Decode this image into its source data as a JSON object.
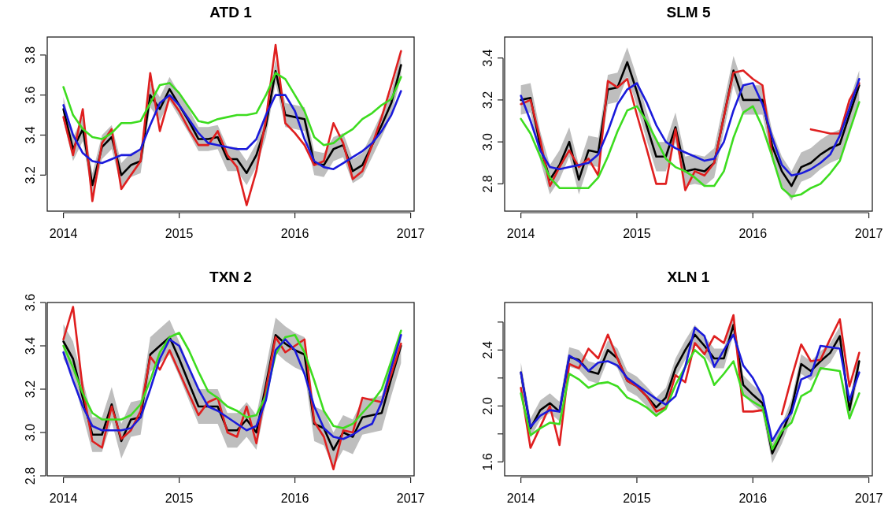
{
  "chart_data": [
    {
      "type": "line",
      "title": "ATD 1",
      "x": [
        2014,
        2014.083,
        2014.167,
        2014.25,
        2014.333,
        2014.417,
        2014.5,
        2014.583,
        2014.667,
        2014.75,
        2014.833,
        2014.917,
        2015,
        2015.083,
        2015.167,
        2015.25,
        2015.333,
        2015.417,
        2015.5,
        2015.583,
        2015.667,
        2015.75,
        2015.833,
        2015.917,
        2016,
        2016.083,
        2016.167,
        2016.25,
        2016.333,
        2016.417,
        2016.5,
        2016.583,
        2016.667,
        2016.75,
        2016.833,
        2016.917
      ],
      "xlim": [
        2013.86,
        2017.03
      ],
      "xticks": [
        2014,
        2015,
        2016,
        2017
      ],
      "ylim": [
        3.02,
        3.89
      ],
      "yticks": [
        3.2,
        3.4,
        3.6,
        3.8
      ],
      "series": [
        {
          "color": "#000000",
          "values": [
            3.53,
            3.33,
            3.43,
            3.15,
            3.34,
            3.39,
            3.2,
            3.25,
            3.27,
            3.6,
            3.53,
            3.63,
            3.55,
            3.47,
            3.38,
            3.38,
            3.39,
            3.28,
            3.28,
            3.21,
            3.3,
            3.45,
            3.72,
            3.5,
            3.49,
            3.48,
            3.26,
            3.25,
            3.33,
            3.35,
            3.22,
            3.25,
            3.35,
            3.45,
            3.56,
            3.75
          ],
          "lower": [
            3.47,
            3.27,
            3.37,
            3.09,
            3.28,
            3.33,
            3.14,
            3.19,
            3.21,
            3.54,
            3.47,
            3.57,
            3.49,
            3.41,
            3.32,
            3.32,
            3.33,
            3.22,
            3.22,
            3.15,
            3.24,
            3.39,
            3.66,
            3.44,
            3.43,
            3.42,
            3.2,
            3.19,
            3.27,
            3.29,
            3.16,
            3.19,
            3.29,
            3.39,
            3.5,
            3.69
          ],
          "upper": [
            3.59,
            3.39,
            3.49,
            3.21,
            3.4,
            3.45,
            3.26,
            3.31,
            3.33,
            3.66,
            3.59,
            3.69,
            3.61,
            3.53,
            3.44,
            3.44,
            3.45,
            3.34,
            3.34,
            3.27,
            3.36,
            3.51,
            3.78,
            3.56,
            3.55,
            3.54,
            3.32,
            3.31,
            3.39,
            3.41,
            3.28,
            3.31,
            3.41,
            3.51,
            3.62,
            3.81
          ]
        },
        {
          "color": "#df1f1f",
          "values": [
            3.49,
            3.3,
            3.53,
            3.07,
            3.36,
            3.43,
            3.13,
            3.2,
            3.27,
            3.71,
            3.42,
            3.59,
            3.52,
            3.43,
            3.35,
            3.35,
            3.42,
            3.3,
            3.24,
            3.05,
            3.22,
            3.48,
            3.85,
            3.46,
            3.41,
            3.35,
            3.25,
            3.27,
            3.46,
            3.36,
            3.18,
            3.22,
            3.35,
            3.49,
            3.65,
            3.82
          ]
        },
        {
          "color": "#3ddc1f",
          "values": [
            3.64,
            3.5,
            3.43,
            3.39,
            3.38,
            3.41,
            3.46,
            3.46,
            3.47,
            3.56,
            3.65,
            3.66,
            3.61,
            3.54,
            3.47,
            3.46,
            3.48,
            3.49,
            3.5,
            3.5,
            3.51,
            3.6,
            3.71,
            3.68,
            3.6,
            3.52,
            3.39,
            3.35,
            3.36,
            3.4,
            3.43,
            3.48,
            3.51,
            3.55,
            3.58,
            3.69
          ]
        },
        {
          "color": "#1a1adb",
          "values": [
            3.55,
            3.4,
            3.31,
            3.27,
            3.26,
            3.28,
            3.3,
            3.3,
            3.33,
            3.45,
            3.56,
            3.6,
            3.55,
            3.48,
            3.41,
            3.36,
            3.35,
            3.34,
            3.33,
            3.33,
            3.38,
            3.5,
            3.6,
            3.6,
            3.52,
            3.38,
            3.27,
            3.24,
            3.23,
            3.26,
            3.29,
            3.32,
            3.36,
            3.42,
            3.5,
            3.62
          ]
        }
      ]
    },
    {
      "type": "line",
      "title": "SLM 5",
      "x": [
        2014,
        2014.083,
        2014.167,
        2014.25,
        2014.333,
        2014.417,
        2014.5,
        2014.583,
        2014.667,
        2014.75,
        2014.833,
        2014.917,
        2015,
        2015.083,
        2015.167,
        2015.25,
        2015.333,
        2015.417,
        2015.5,
        2015.583,
        2015.667,
        2015.75,
        2015.833,
        2015.917,
        2016,
        2016.083,
        2016.167,
        2016.25,
        2016.333,
        2016.417,
        2016.5,
        2016.583,
        2016.667,
        2016.75,
        2016.833,
        2016.917
      ],
      "xlim": [
        2013.86,
        2017.03
      ],
      "xticks": [
        2014,
        2015,
        2016,
        2017
      ],
      "ylim": [
        2.67,
        3.5
      ],
      "yticks": [
        2.8,
        {
          "value": 3,
          "label": "3.0"
        },
        3.2,
        3.4
      ],
      "series": [
        {
          "color": "#000000",
          "values": [
            3.2,
            3.21,
            2.98,
            2.82,
            2.89,
            3.0,
            2.82,
            2.96,
            2.95,
            3.25,
            3.26,
            3.38,
            3.24,
            3.08,
            2.93,
            2.93,
            3.07,
            2.86,
            2.87,
            2.86,
            2.9,
            3.12,
            3.34,
            3.2,
            3.2,
            3.2,
            2.98,
            2.86,
            2.79,
            2.88,
            2.9,
            2.94,
            2.97,
            2.99,
            3.13,
            3.27
          ],
          "lower": [
            3.13,
            3.14,
            2.91,
            2.75,
            2.82,
            2.93,
            2.75,
            2.89,
            2.88,
            3.18,
            3.19,
            3.31,
            3.17,
            3.01,
            2.86,
            2.86,
            3.0,
            2.79,
            2.8,
            2.79,
            2.83,
            3.05,
            3.27,
            3.13,
            3.13,
            3.13,
            2.91,
            2.79,
            2.72,
            2.81,
            2.83,
            2.87,
            2.9,
            2.92,
            3.06,
            3.2
          ],
          "upper": [
            3.27,
            3.28,
            3.05,
            2.89,
            2.96,
            3.07,
            2.89,
            3.03,
            3.02,
            3.32,
            3.33,
            3.45,
            3.31,
            3.15,
            3.0,
            3.0,
            3.14,
            2.93,
            2.94,
            2.93,
            2.97,
            3.19,
            3.41,
            3.27,
            3.27,
            3.27,
            3.05,
            2.93,
            2.86,
            2.95,
            2.97,
            3.01,
            3.04,
            3.06,
            3.2,
            3.34
          ]
        },
        {
          "color": "#df1f1f",
          "values": [
            3.18,
            3.2,
            3.01,
            2.79,
            2.88,
            2.96,
            2.88,
            2.92,
            2.84,
            3.29,
            3.26,
            3.3,
            3.13,
            2.97,
            2.8,
            2.8,
            3.06,
            2.77,
            2.86,
            2.84,
            2.9,
            3.12,
            3.33,
            3.34,
            3.3,
            3.27,
            2.93,
            null,
            null,
            null,
            3.06,
            3.05,
            3.04,
            3.04,
            3.2,
            3.28
          ]
        },
        {
          "color": "#3ddc1f",
          "values": [
            3.11,
            3.04,
            2.93,
            2.83,
            2.78,
            2.78,
            2.78,
            2.78,
            2.83,
            2.93,
            3.05,
            3.15,
            3.17,
            3.1,
            3.01,
            2.92,
            2.88,
            2.86,
            2.83,
            2.79,
            2.79,
            2.86,
            3.02,
            3.14,
            3.17,
            3.07,
            2.93,
            2.78,
            2.74,
            2.75,
            2.78,
            2.8,
            2.85,
            2.91,
            3.05,
            3.19
          ]
        },
        {
          "color": "#1a1adb",
          "values": [
            3.22,
            3.1,
            2.96,
            2.88,
            2.87,
            2.88,
            2.89,
            2.9,
            2.94,
            3.05,
            3.18,
            3.25,
            3.28,
            3.19,
            3.08,
            3.0,
            2.97,
            2.95,
            2.93,
            2.91,
            2.92,
            3.0,
            3.15,
            3.27,
            3.28,
            3.18,
            3.02,
            2.89,
            2.84,
            2.85,
            2.87,
            2.9,
            2.94,
            3.03,
            3.16,
            3.3
          ]
        }
      ]
    },
    {
      "type": "line",
      "title": "TXN 2",
      "x": [
        2014,
        2014.083,
        2014.167,
        2014.25,
        2014.333,
        2014.417,
        2014.5,
        2014.583,
        2014.667,
        2014.75,
        2014.833,
        2014.917,
        2015,
        2015.083,
        2015.167,
        2015.25,
        2015.333,
        2015.417,
        2015.5,
        2015.583,
        2015.667,
        2015.75,
        2015.833,
        2015.917,
        2016,
        2016.083,
        2016.167,
        2016.25,
        2016.333,
        2016.417,
        2016.5,
        2016.583,
        2016.667,
        2016.75,
        2016.833,
        2016.917
      ],
      "xlim": [
        2013.86,
        2017.03
      ],
      "xticks": [
        2014,
        2015,
        2016,
        2017
      ],
      "ylim": [
        2.8,
        3.6
      ],
      "yticks": [
        2.8,
        {
          "value": 3,
          "label": "3.0"
        },
        3.2,
        3.4,
        3.6
      ],
      "series": [
        {
          "color": "#000000",
          "values": [
            3.42,
            3.34,
            3.16,
            2.99,
            2.99,
            3.13,
            2.96,
            3.06,
            3.07,
            3.36,
            3.4,
            3.44,
            3.34,
            3.23,
            3.12,
            3.12,
            3.12,
            3.01,
            3.01,
            3.06,
            3.0,
            3.22,
            3.45,
            3.41,
            3.38,
            3.36,
            3.04,
            3.02,
            2.92,
            3.0,
            2.98,
            3.07,
            3.08,
            3.09,
            3.25,
            3.4
          ],
          "lower": [
            3.34,
            3.26,
            3.08,
            2.91,
            2.91,
            3.05,
            2.88,
            2.98,
            2.99,
            3.28,
            3.32,
            3.36,
            3.26,
            3.15,
            3.04,
            3.04,
            3.04,
            2.93,
            2.93,
            2.98,
            2.92,
            3.14,
            3.37,
            3.33,
            3.3,
            3.28,
            2.96,
            2.94,
            2.84,
            2.92,
            2.9,
            2.99,
            3.0,
            3.01,
            3.17,
            3.32
          ],
          "upper": [
            3.5,
            3.42,
            3.24,
            3.07,
            3.07,
            3.21,
            3.04,
            3.14,
            3.15,
            3.44,
            3.48,
            3.52,
            3.42,
            3.31,
            3.2,
            3.2,
            3.2,
            3.09,
            3.09,
            3.14,
            3.08,
            3.3,
            3.53,
            3.49,
            3.46,
            3.44,
            3.12,
            3.1,
            3.0,
            3.08,
            3.06,
            3.15,
            3.16,
            3.17,
            3.33,
            3.48
          ]
        },
        {
          "color": "#df1f1f",
          "values": [
            3.43,
            3.58,
            3.2,
            2.96,
            2.93,
            3.12,
            2.97,
            3.01,
            3.1,
            3.35,
            3.29,
            3.38,
            3.28,
            3.18,
            3.08,
            3.14,
            3.16,
            3.0,
            2.98,
            3.12,
            2.95,
            3.2,
            3.44,
            3.37,
            3.4,
            3.43,
            3.05,
            2.98,
            2.83,
            3.01,
            3.0,
            3.16,
            3.15,
            3.14,
            3.27,
            3.41
          ]
        },
        {
          "color": "#3ddc1f",
          "values": [
            3.4,
            3.3,
            3.18,
            3.09,
            3.06,
            3.06,
            3.06,
            3.08,
            3.13,
            3.24,
            3.37,
            3.44,
            3.46,
            3.38,
            3.28,
            3.19,
            3.16,
            3.12,
            3.1,
            3.07,
            3.08,
            3.17,
            3.36,
            3.44,
            3.45,
            3.37,
            3.24,
            3.1,
            3.03,
            3.02,
            3.04,
            3.09,
            3.14,
            3.2,
            3.33,
            3.47
          ]
        },
        {
          "color": "#1a1adb",
          "values": [
            3.37,
            3.24,
            3.12,
            3.03,
            3.01,
            3.01,
            3.01,
            3.02,
            3.07,
            3.2,
            3.34,
            3.43,
            3.4,
            3.3,
            3.2,
            3.12,
            3.1,
            3.07,
            3.04,
            3.01,
            3.03,
            3.15,
            3.38,
            3.43,
            3.38,
            3.27,
            3.12,
            3.02,
            2.98,
            2.97,
            2.99,
            3.02,
            3.04,
            3.14,
            3.3,
            3.45
          ]
        }
      ]
    },
    {
      "type": "line",
      "title": "XLN 1",
      "x": [
        2014,
        2014.083,
        2014.167,
        2014.25,
        2014.333,
        2014.417,
        2014.5,
        2014.583,
        2014.667,
        2014.75,
        2014.833,
        2014.917,
        2015,
        2015.083,
        2015.167,
        2015.25,
        2015.333,
        2015.417,
        2015.5,
        2015.583,
        2015.667,
        2015.75,
        2015.833,
        2015.917,
        2016,
        2016.083,
        2016.167,
        2016.25,
        2016.333,
        2016.417,
        2016.5,
        2016.583,
        2016.667,
        2016.75,
        2016.833,
        2016.917
      ],
      "xlim": [
        2013.86,
        2017.03
      ],
      "xticks": [
        2014,
        2015,
        2016,
        2017
      ],
      "ylim": [
        1.5,
        2.74
      ],
      "yticks": [
        1.6,
        {
          "value": 1.8,
          "label": null
        },
        {
          "value": 2,
          "label": "2.0"
        },
        {
          "value": 2.2,
          "label": null
        },
        2.4,
        {
          "value": 2.6,
          "label": null
        }
      ],
      "series": [
        {
          "color": "#000000",
          "values": [
            2.24,
            1.84,
            1.97,
            2.02,
            1.96,
            2.35,
            2.33,
            2.25,
            2.23,
            2.4,
            2.34,
            2.18,
            2.14,
            2.07,
            1.99,
            2.06,
            2.27,
            2.4,
            2.51,
            2.43,
            2.34,
            2.34,
            2.58,
            2.15,
            2.08,
            2.02,
            1.66,
            1.8,
            1.98,
            2.3,
            2.25,
            2.32,
            2.38,
            2.5,
            1.97,
            2.32
          ],
          "lower": [
            2.17,
            1.77,
            1.9,
            1.95,
            1.89,
            2.28,
            2.26,
            2.18,
            2.16,
            2.33,
            2.27,
            2.11,
            2.07,
            2.0,
            1.92,
            1.99,
            2.2,
            2.33,
            2.44,
            2.36,
            2.27,
            2.27,
            2.51,
            2.08,
            2.01,
            1.95,
            1.59,
            1.73,
            1.91,
            2.23,
            2.18,
            2.25,
            2.31,
            2.43,
            1.9,
            2.25
          ],
          "upper": [
            2.31,
            1.91,
            2.04,
            2.09,
            2.03,
            2.42,
            2.4,
            2.32,
            2.3,
            2.47,
            2.41,
            2.25,
            2.21,
            2.14,
            2.06,
            2.13,
            2.34,
            2.47,
            2.58,
            2.5,
            2.41,
            2.41,
            2.65,
            2.22,
            2.15,
            2.09,
            1.73,
            1.87,
            2.05,
            2.37,
            2.32,
            2.39,
            2.45,
            2.57,
            2.04,
            2.39
          ]
        },
        {
          "color": "#df1f1f",
          "values": [
            2.13,
            1.7,
            1.85,
            2.0,
            1.72,
            2.3,
            2.27,
            2.41,
            2.34,
            2.51,
            2.34,
            2.18,
            2.14,
            2.07,
            1.96,
            1.99,
            2.22,
            2.17,
            2.45,
            2.37,
            2.5,
            2.45,
            2.65,
            1.96,
            1.96,
            1.97,
            null,
            1.94,
            2.2,
            2.44,
            2.32,
            2.33,
            2.48,
            2.62,
            2.14,
            2.38
          ]
        },
        {
          "color": "#3ddc1f",
          "values": [
            2.09,
            1.79,
            1.84,
            1.88,
            1.87,
            2.23,
            2.19,
            2.13,
            2.16,
            2.17,
            2.14,
            2.06,
            2.03,
            1.99,
            1.93,
            1.98,
            2.15,
            2.28,
            2.4,
            2.34,
            2.15,
            2.23,
            2.32,
            2.08,
            2.03,
            1.99,
            1.69,
            1.82,
            1.88,
            2.07,
            2.11,
            2.27,
            2.26,
            2.25,
            1.91,
            2.09
          ]
        },
        {
          "color": "#1a1adb",
          "values": [
            2.24,
            1.85,
            1.93,
            1.97,
            1.96,
            2.36,
            2.32,
            2.25,
            2.31,
            2.32,
            2.29,
            2.2,
            2.15,
            2.1,
            2.05,
            2.01,
            2.07,
            2.28,
            2.56,
            2.5,
            2.28,
            2.4,
            2.51,
            2.29,
            2.2,
            2.07,
            1.75,
            1.87,
            1.95,
            2.19,
            2.22,
            2.43,
            2.42,
            2.41,
            2.04,
            2.24
          ]
        }
      ]
    }
  ]
}
